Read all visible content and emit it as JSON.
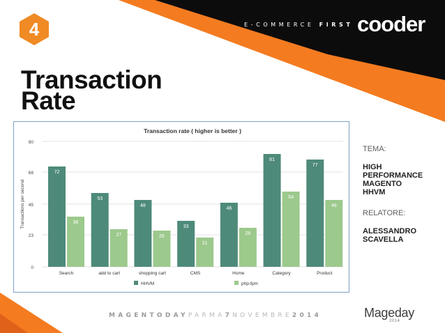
{
  "slide": {
    "badge_number": "4",
    "tagline_light": "E-COMMERCE",
    "tagline_bold": "FIRST",
    "logo": "cooder",
    "title": "Transaction\nRate",
    "theme_label": "TEMA:",
    "theme_value": "HIGH\nPERFORMANCE\nMAGENTO\nHHVM",
    "speaker_label": "RELATORE:",
    "speaker_value": "ALESSANDRO\nSCAVELLA",
    "footer_part1": "MAGENTODAY",
    "footer_part2": "PARMA",
    "footer_part3": "7",
    "footer_part4": "NOVEMBRE",
    "footer_part5": "2014",
    "event_logo": "Mageday",
    "event_year": "2014"
  },
  "colors": {
    "orange": "#f47b20",
    "black": "#0c0c0c",
    "badge": "#f08a24",
    "hhvm": "#4e8a7a",
    "phpfpm": "#9cc98c"
  },
  "chart_data": {
    "type": "bar",
    "title": "Transaction rate ( higher is better )",
    "ylabel": "Transactions per second",
    "xlabel": "",
    "categories": [
      "Search",
      "add to cart",
      "shopping cart",
      "CMS",
      "Home",
      "Category",
      "Product"
    ],
    "series": [
      {
        "name": "HHVM",
        "values": [
          72,
          53,
          48,
          33,
          46,
          81,
          77
        ]
      },
      {
        "name": "php-fpm",
        "values": [
          36,
          27,
          26,
          21,
          28,
          54,
          48
        ]
      }
    ],
    "ylim": [
      0,
      90
    ],
    "yticks": [
      "0",
      "23",
      "45",
      "68",
      "90"
    ],
    "grid": true,
    "legend": "bottom"
  }
}
